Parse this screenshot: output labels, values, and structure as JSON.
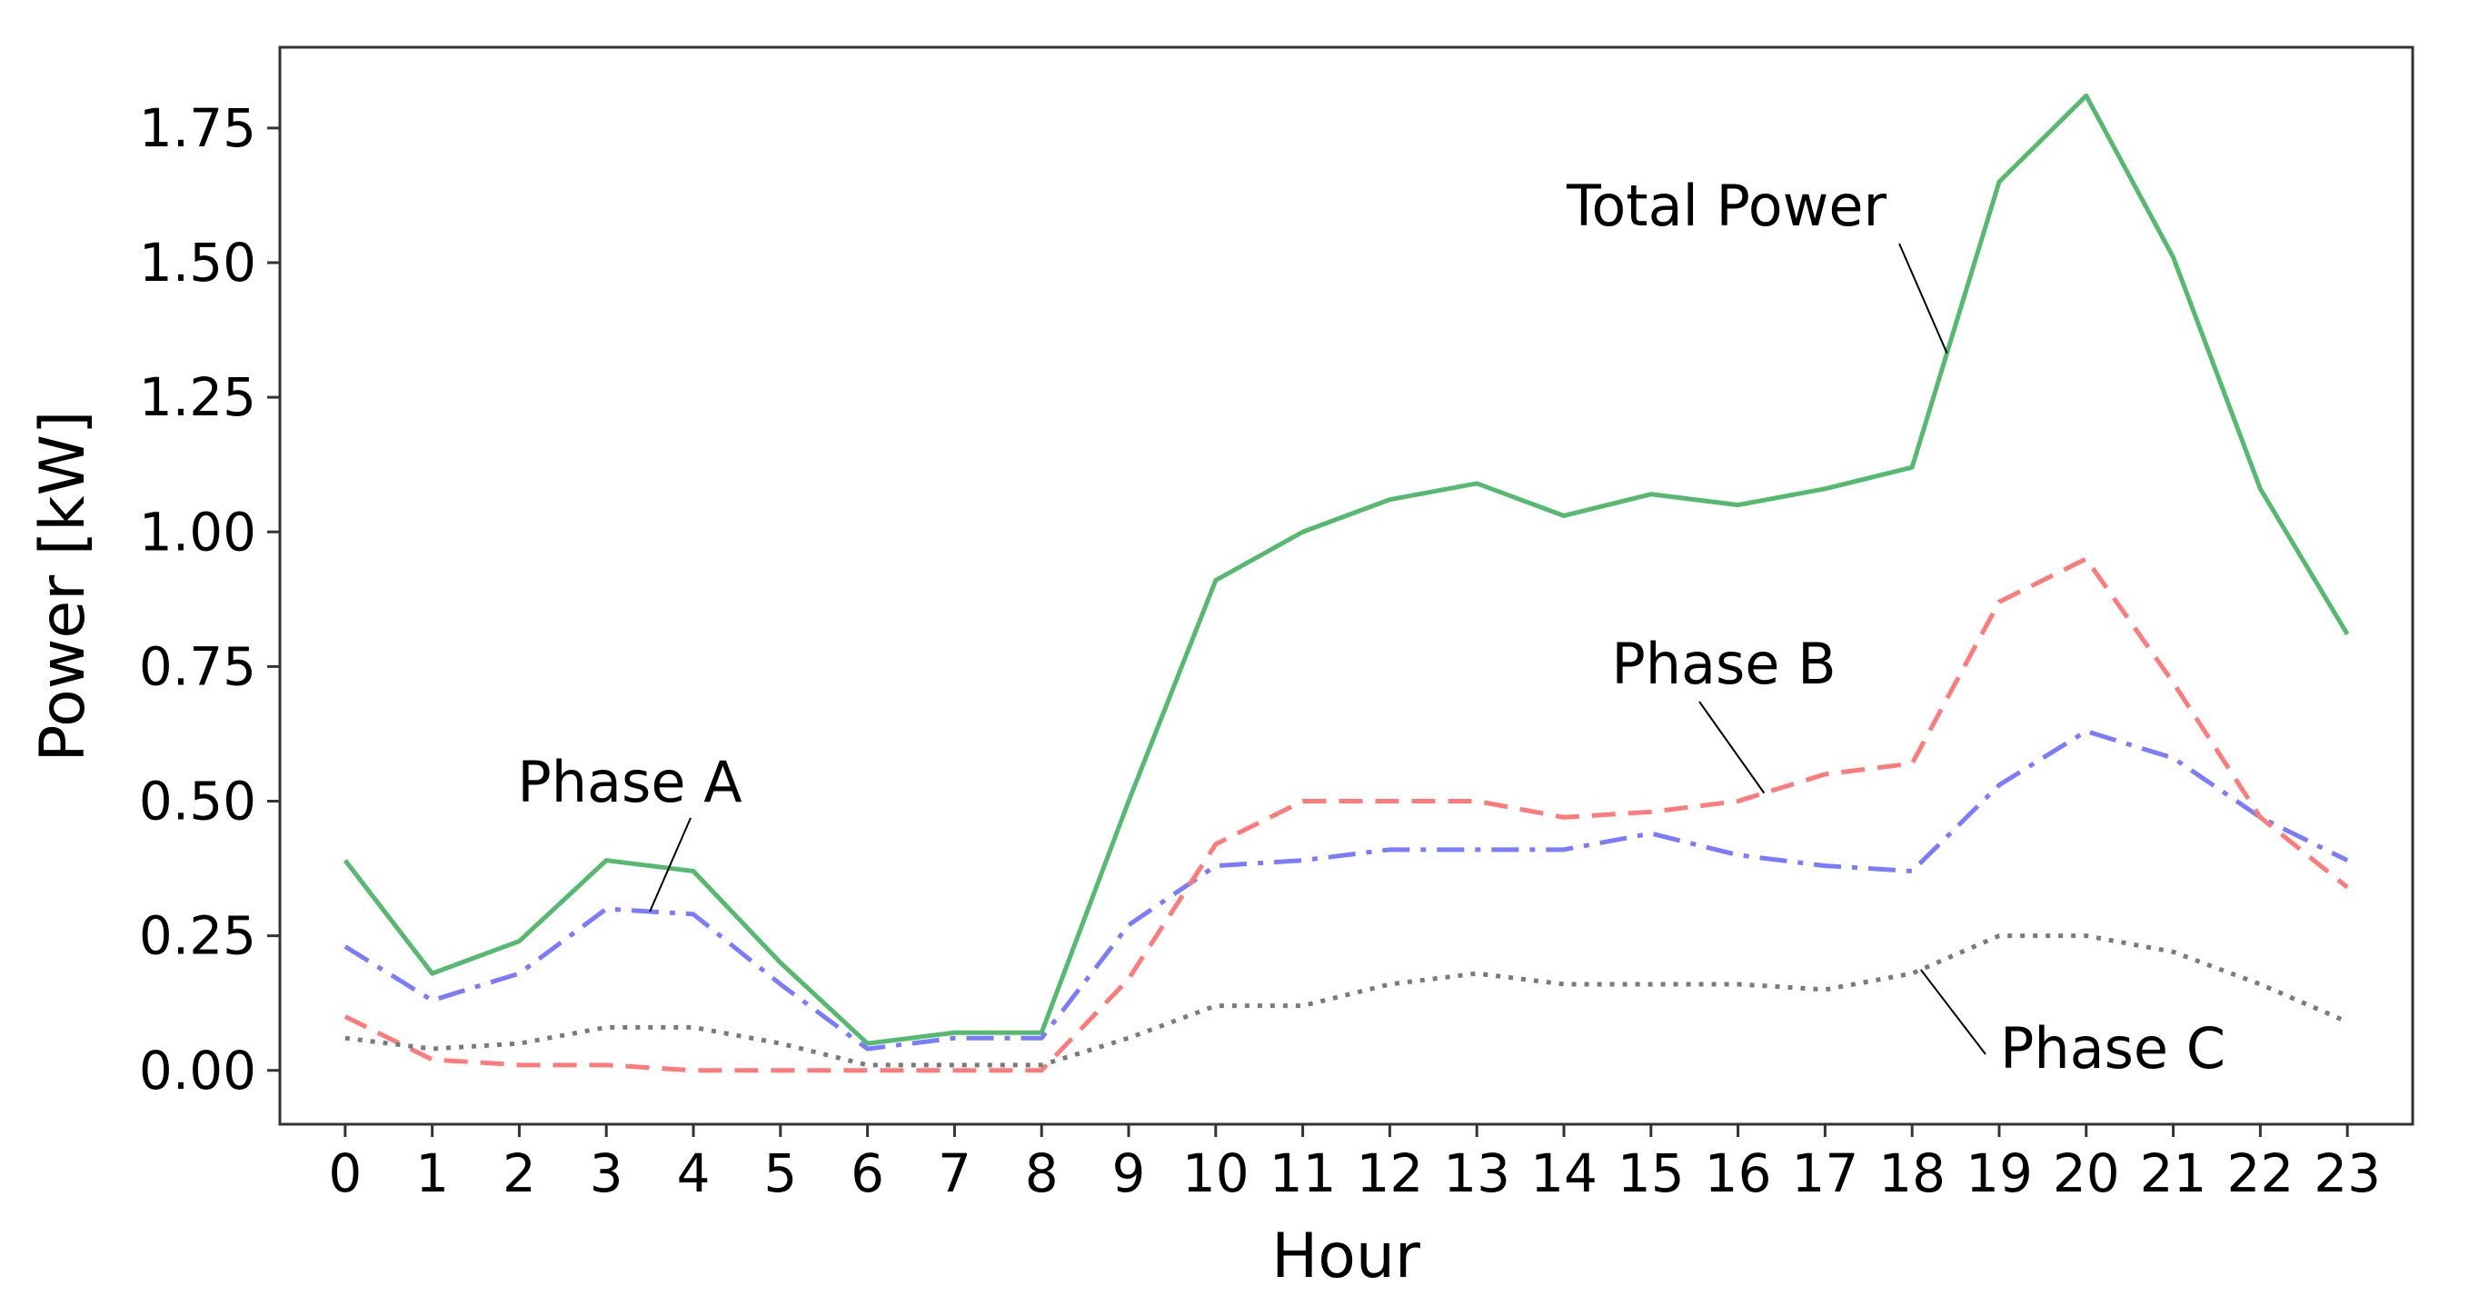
{
  "chart_data": {
    "type": "line",
    "title": "",
    "xlabel": "Hour",
    "ylabel": "Power [kW]",
    "x": [
      0,
      1,
      2,
      3,
      4,
      5,
      6,
      7,
      8,
      9,
      10,
      11,
      12,
      13,
      14,
      15,
      16,
      17,
      18,
      19,
      20,
      21,
      22,
      23
    ],
    "x_ticks": [
      "0",
      "1",
      "2",
      "3",
      "4",
      "5",
      "6",
      "7",
      "8",
      "9",
      "10",
      "11",
      "12",
      "13",
      "14",
      "15",
      "16",
      "17",
      "18",
      "19",
      "20",
      "21",
      "22",
      "23"
    ],
    "y_ticks": [
      "0.00",
      "0.25",
      "0.50",
      "0.75",
      "1.00",
      "1.25",
      "1.50",
      "1.75"
    ],
    "xlim": [
      -0.75,
      23.75
    ],
    "ylim": [
      -0.1,
      1.9
    ],
    "grid": false,
    "legend": "none",
    "series": [
      {
        "name": "Total Power",
        "color": "#55b96f",
        "style": "solid",
        "values": [
          0.39,
          0.18,
          0.24,
          0.39,
          0.37,
          0.2,
          0.05,
          0.07,
          0.07,
          0.5,
          0.91,
          1.0,
          1.06,
          1.09,
          1.03,
          1.07,
          1.05,
          1.08,
          1.12,
          1.65,
          1.81,
          1.51,
          1.08,
          0.81
        ]
      },
      {
        "name": "Phase A",
        "color": "#7b7bff",
        "style": "dashdot",
        "values": [
          0.23,
          0.13,
          0.18,
          0.3,
          0.29,
          0.16,
          0.04,
          0.06,
          0.06,
          0.27,
          0.38,
          0.39,
          0.41,
          0.41,
          0.41,
          0.44,
          0.4,
          0.38,
          0.37,
          0.53,
          0.63,
          0.58,
          0.47,
          0.39
        ]
      },
      {
        "name": "Phase B",
        "color": "#ff7a7a",
        "style": "dashed",
        "values": [
          0.1,
          0.02,
          0.01,
          0.01,
          0.0,
          0.0,
          0.0,
          0.0,
          0.0,
          0.17,
          0.42,
          0.5,
          0.5,
          0.5,
          0.47,
          0.48,
          0.5,
          0.55,
          0.57,
          0.87,
          0.95,
          0.72,
          0.47,
          0.34
        ]
      },
      {
        "name": "Phase C",
        "color": "#7a7a7a",
        "style": "dotted",
        "values": [
          0.06,
          0.04,
          0.05,
          0.08,
          0.08,
          0.05,
          0.01,
          0.01,
          0.01,
          0.06,
          0.12,
          0.12,
          0.16,
          0.18,
          0.16,
          0.16,
          0.16,
          0.15,
          0.18,
          0.25,
          0.25,
          0.22,
          0.16,
          0.09
        ]
      }
    ],
    "annotations": [
      {
        "text": "Total Power",
        "series": "Total Power",
        "target_x": 18.4
      },
      {
        "text": "Phase A",
        "series": "Phase A",
        "target_x": 3.5
      },
      {
        "text": "Phase B",
        "series": "Phase B",
        "target_x": 16.3
      },
      {
        "text": "Phase C",
        "series": "Phase C",
        "target_x": 18.1
      }
    ]
  }
}
